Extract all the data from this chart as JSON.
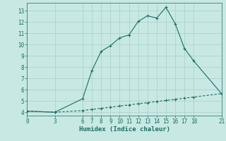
{
  "xlabel": "Humidex (Indice chaleur)",
  "background_color": "#c8e8e4",
  "grid_color": "#a8ceca",
  "line_color": "#1a6e62",
  "line1_x": [
    0,
    3,
    6,
    7,
    8,
    9,
    10,
    11,
    12,
    13,
    14,
    15,
    16,
    17,
    18,
    21
  ],
  "line1_y": [
    4.1,
    4.0,
    5.2,
    7.7,
    9.4,
    9.9,
    10.6,
    10.85,
    12.05,
    12.55,
    12.35,
    13.3,
    11.85,
    9.65,
    8.55,
    5.65
  ],
  "line2_x": [
    0,
    3,
    6,
    7,
    8,
    9,
    10,
    11,
    12,
    13,
    14,
    15,
    16,
    17,
    18,
    21
  ],
  "line2_y": [
    4.1,
    4.0,
    4.15,
    4.25,
    4.35,
    4.45,
    4.55,
    4.65,
    4.75,
    4.85,
    4.95,
    5.05,
    5.15,
    5.25,
    5.35,
    5.65
  ],
  "xticks": [
    0,
    3,
    6,
    7,
    8,
    9,
    10,
    11,
    12,
    13,
    14,
    15,
    16,
    17,
    18,
    21
  ],
  "yticks": [
    4,
    5,
    6,
    7,
    8,
    9,
    10,
    11,
    12,
    13
  ],
  "xlim": [
    0,
    21
  ],
  "ylim": [
    3.7,
    13.7
  ],
  "marker": "+",
  "markersize": 3.5,
  "linewidth": 0.8,
  "fontsize_ticks": 5.5,
  "fontsize_label": 6.5
}
